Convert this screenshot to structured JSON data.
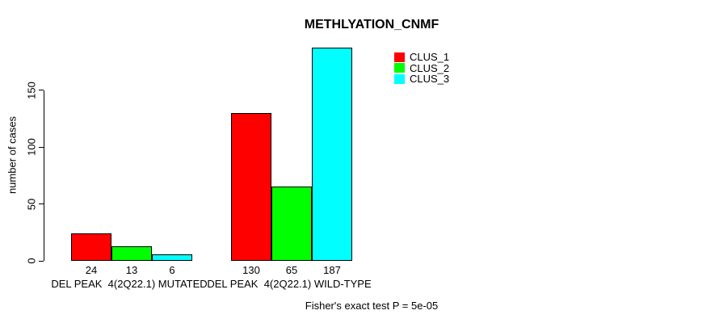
{
  "chart_data": {
    "type": "bar",
    "title": "METHLYATION_CNMF",
    "ylabel": "number of cases",
    "xlabel": "",
    "categories": [
      "DEL PEAK  4(2Q22.1) MUTATED",
      "DEL PEAK  4(2Q22.1) WILD-TYPE"
    ],
    "series": [
      {
        "name": "CLUS_1",
        "color": "#FF0000",
        "values": [
          24,
          130
        ]
      },
      {
        "name": "CLUS_2",
        "color": "#00FF00",
        "values": [
          13,
          65
        ]
      },
      {
        "name": "CLUS_3",
        "color": "#00FFFF",
        "values": [
          6,
          187
        ]
      }
    ],
    "yticks": [
      0,
      50,
      100,
      150
    ],
    "ylim": [
      0,
      187
    ],
    "grid": false,
    "legend_position": "top-right",
    "annotation": "Fisher's exact test P = 5e-05",
    "bar_border_color": "#000000",
    "background_color": "#FFFFFF"
  }
}
